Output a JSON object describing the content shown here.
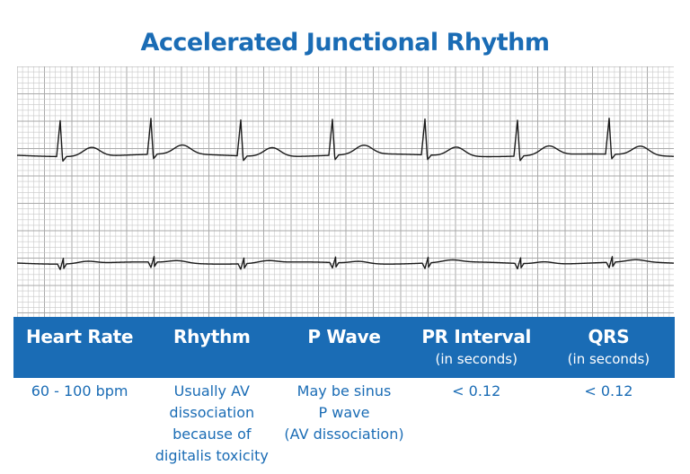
{
  "title": "Accelerated Junctional Rhythm",
  "colors": {
    "accent": "#1a6cb5",
    "grid_minor": "#c8c8c8",
    "grid_major": "#a9a9a9",
    "trace": "#1a1a1a"
  },
  "columns": [
    {
      "header": "Heart Rate",
      "sub": "",
      "value_lines": [
        "60 - 100 bpm"
      ]
    },
    {
      "header": "Rhythm",
      "sub": "",
      "value_lines": [
        "Usually AV",
        "dissociation",
        "because of",
        "digitalis toxicity"
      ]
    },
    {
      "header": "P Wave",
      "sub": "",
      "value_lines": [
        "May be sinus",
        "P wave",
        "(AV dissociation)"
      ]
    },
    {
      "header": "PR Interval",
      "sub": "(in seconds)",
      "value_lines": [
        "< 0.12"
      ]
    },
    {
      "header": "QRS",
      "sub": "(in seconds)",
      "value_lines": [
        "< 0.12"
      ]
    }
  ]
}
